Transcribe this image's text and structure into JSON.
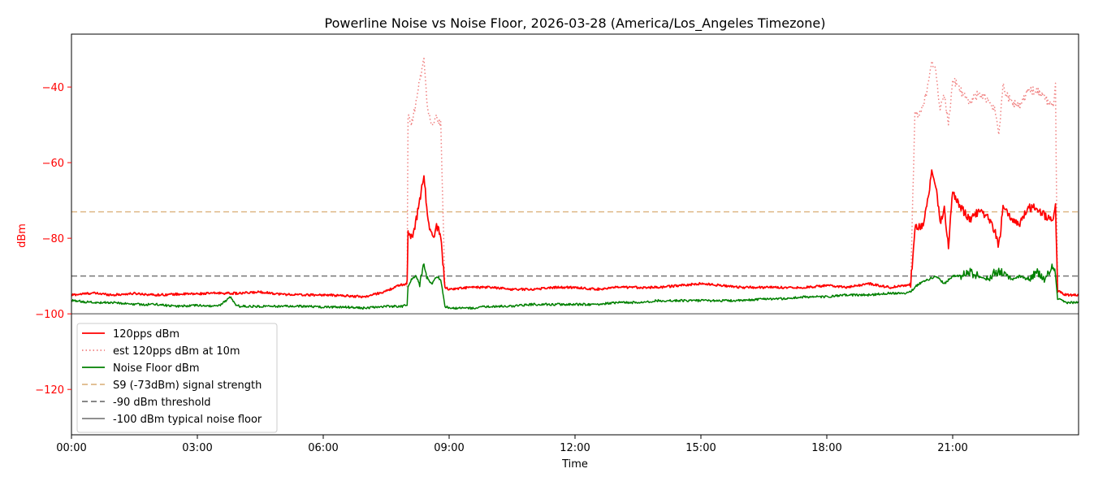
{
  "chart_data": {
    "type": "line",
    "title": "Powerline Noise vs Noise Floor, 2026-03-28 (America/Los_Angeles Timezone)",
    "xlabel": "Time",
    "ylabel": "dBm",
    "xlim": [
      0,
      24
    ],
    "ylim": [
      -132,
      -26
    ],
    "x_ticks": [
      {
        "value": 0,
        "label": "00:00"
      },
      {
        "value": 3,
        "label": "03:00"
      },
      {
        "value": 6,
        "label": "06:00"
      },
      {
        "value": 9,
        "label": "09:00"
      },
      {
        "value": 12,
        "label": "12:00"
      },
      {
        "value": 15,
        "label": "15:00"
      },
      {
        "value": 18,
        "label": "18:00"
      },
      {
        "value": 21,
        "label": "21:00"
      }
    ],
    "y_ticks": [
      {
        "value": -40,
        "label": "−40"
      },
      {
        "value": -60,
        "label": "−60"
      },
      {
        "value": -80,
        "label": "−80"
      },
      {
        "value": -100,
        "label": "−100"
      },
      {
        "value": -120,
        "label": "−120"
      }
    ],
    "ytick_color": "#ff0000",
    "ylabel_color": "#ff0000",
    "grid": false,
    "legend_position": "lower-left",
    "series": [
      {
        "name": "120pps dBm",
        "color": "#ff0000",
        "style": "solid",
        "x": [
          0,
          0.5,
          1,
          1.5,
          2,
          2.5,
          3,
          3.5,
          4,
          4.5,
          5,
          5.5,
          6,
          6.5,
          7,
          7.5,
          7.8,
          8.0,
          8.02,
          8.1,
          8.2,
          8.3,
          8.4,
          8.5,
          8.6,
          8.7,
          8.8,
          8.9,
          9.0,
          9.5,
          10,
          10.5,
          11,
          11.5,
          12,
          12.5,
          13,
          13.5,
          14,
          14.5,
          15,
          15.5,
          16,
          16.5,
          17,
          17.5,
          18,
          18.5,
          19,
          19.5,
          19.9,
          20.0,
          20.1,
          20.2,
          20.3,
          20.4,
          20.5,
          20.6,
          20.7,
          20.8,
          20.9,
          21.0,
          21.2,
          21.4,
          21.6,
          21.8,
          22.0,
          22.1,
          22.2,
          22.4,
          22.6,
          22.8,
          23.0,
          23.2,
          23.4,
          23.45,
          23.5,
          23.7,
          24
        ],
        "y": [
          -95,
          -94.5,
          -95,
          -94.6,
          -95,
          -94.8,
          -94.7,
          -94.5,
          -94.6,
          -94.2,
          -94.8,
          -95,
          -95,
          -95.2,
          -95.5,
          -94,
          -92.5,
          -92,
          -78,
          -80,
          -76,
          -70,
          -63,
          -76,
          -80,
          -77,
          -79,
          -93,
          -93.5,
          -93,
          -93,
          -93.5,
          -93.5,
          -93,
          -93,
          -93.5,
          -93,
          -93,
          -93,
          -92.5,
          -92,
          -92.5,
          -93,
          -93,
          -93,
          -93,
          -92.5,
          -93,
          -92,
          -93,
          -92.5,
          -92,
          -77,
          -77,
          -76,
          -70,
          -63,
          -66,
          -76,
          -72,
          -82,
          -68,
          -72,
          -75,
          -73,
          -74,
          -78,
          -82,
          -72,
          -75,
          -76,
          -72,
          -72,
          -74,
          -75,
          -70,
          -94,
          -95,
          -95
        ]
      },
      {
        "name": "est 120pps dBm at 10m",
        "color": "#f08080",
        "style": "dotted",
        "x": [
          0,
          0.5,
          1,
          1.5,
          2,
          2.5,
          3,
          3.5,
          4,
          4.5,
          5,
          5.5,
          6,
          6.5,
          7,
          7.5,
          7.8,
          8.0,
          8.02,
          8.1,
          8.2,
          8.3,
          8.4,
          8.5,
          8.6,
          8.7,
          8.8,
          8.9,
          9.0,
          9.5,
          10,
          10.5,
          11,
          11.5,
          12,
          12.5,
          13,
          13.5,
          14,
          14.5,
          15,
          15.5,
          16,
          16.5,
          17,
          17.5,
          18,
          18.5,
          19,
          19.5,
          19.9,
          20.0,
          20.1,
          20.2,
          20.3,
          20.4,
          20.5,
          20.6,
          20.7,
          20.8,
          20.9,
          21.0,
          21.2,
          21.4,
          21.6,
          21.8,
          22.0,
          22.1,
          22.2,
          22.4,
          22.6,
          22.8,
          23.0,
          23.2,
          23.4,
          23.45,
          23.5,
          23.7,
          24
        ],
        "y": [
          -95,
          -94.5,
          -95,
          -94.6,
          -95,
          -94.8,
          -94.7,
          -94.5,
          -94.6,
          -94.2,
          -94.8,
          -95,
          -95,
          -95.2,
          -95.5,
          -94,
          -92.5,
          -92,
          -48,
          -50,
          -45,
          -38,
          -33,
          -47,
          -50,
          -48,
          -50,
          -93,
          -93.5,
          -93,
          -93,
          -93.5,
          -93.5,
          -93,
          -93,
          -93.5,
          -93,
          -93,
          -93,
          -92.5,
          -92,
          -92.5,
          -93,
          -93,
          -93,
          -93,
          -92.5,
          -93,
          -92,
          -93,
          -92.5,
          -92,
          -47,
          -47,
          -45,
          -40,
          -33,
          -36,
          -46,
          -42,
          -50,
          -38,
          -41,
          -44,
          -42,
          -43,
          -46,
          -52,
          -40,
          -44,
          -45,
          -41,
          -41,
          -43,
          -45,
          -40,
          -94,
          -95,
          -95
        ]
      },
      {
        "name": "Noise Floor dBm",
        "color": "#008000",
        "style": "solid",
        "x": [
          0,
          0.5,
          1,
          1.5,
          2,
          2.5,
          3,
          3.5,
          3.8,
          3.9,
          4,
          4.5,
          5,
          5.5,
          6,
          6.5,
          7,
          7.5,
          7.9,
          8.0,
          8.02,
          8.1,
          8.2,
          8.3,
          8.4,
          8.5,
          8.6,
          8.7,
          8.8,
          8.9,
          9.0,
          9.5,
          10,
          10.5,
          11,
          11.5,
          12,
          12.5,
          13,
          13.5,
          14,
          14.5,
          15,
          15.5,
          16,
          16.5,
          17,
          17.5,
          18,
          18.5,
          19,
          19.5,
          19.9,
          20.0,
          20.2,
          20.4,
          20.6,
          20.8,
          21.0,
          21.2,
          21.4,
          21.6,
          21.8,
          22.0,
          22.2,
          22.4,
          22.6,
          22.8,
          23.0,
          23.2,
          23.4,
          23.45,
          23.5,
          23.7,
          24
        ],
        "y": [
          -96.5,
          -97,
          -97,
          -97.5,
          -97.5,
          -98,
          -97.8,
          -98,
          -95.5,
          -97.5,
          -98,
          -98,
          -98,
          -98,
          -98.2,
          -98.2,
          -98.5,
          -98,
          -98,
          -97.5,
          -93,
          -91,
          -90,
          -92,
          -87,
          -91,
          -92,
          -90,
          -91,
          -98,
          -98.5,
          -98.5,
          -98,
          -98,
          -97.5,
          -97.5,
          -97.5,
          -97.5,
          -97,
          -97,
          -96.5,
          -96.5,
          -96.5,
          -96.5,
          -96.5,
          -96,
          -96,
          -95.5,
          -95.5,
          -95,
          -95,
          -94.5,
          -94.5,
          -94,
          -92,
          -91,
          -90,
          -92,
          -90,
          -90,
          -89,
          -90,
          -91,
          -89,
          -89,
          -91,
          -90,
          -91,
          -89,
          -91,
          -87,
          -90,
          -96,
          -97,
          -97
        ]
      }
    ],
    "reference_lines": [
      {
        "name": "S9 (-73dBm) signal strength",
        "y": -73,
        "color": "#deb887",
        "style": "dashed"
      },
      {
        "name": "-90 dBm threshold",
        "y": -90,
        "color": "#777777",
        "style": "dashed"
      },
      {
        "name": "-100 dBm typical noise floor",
        "y": -100,
        "color": "#808080",
        "style": "solid"
      }
    ]
  }
}
